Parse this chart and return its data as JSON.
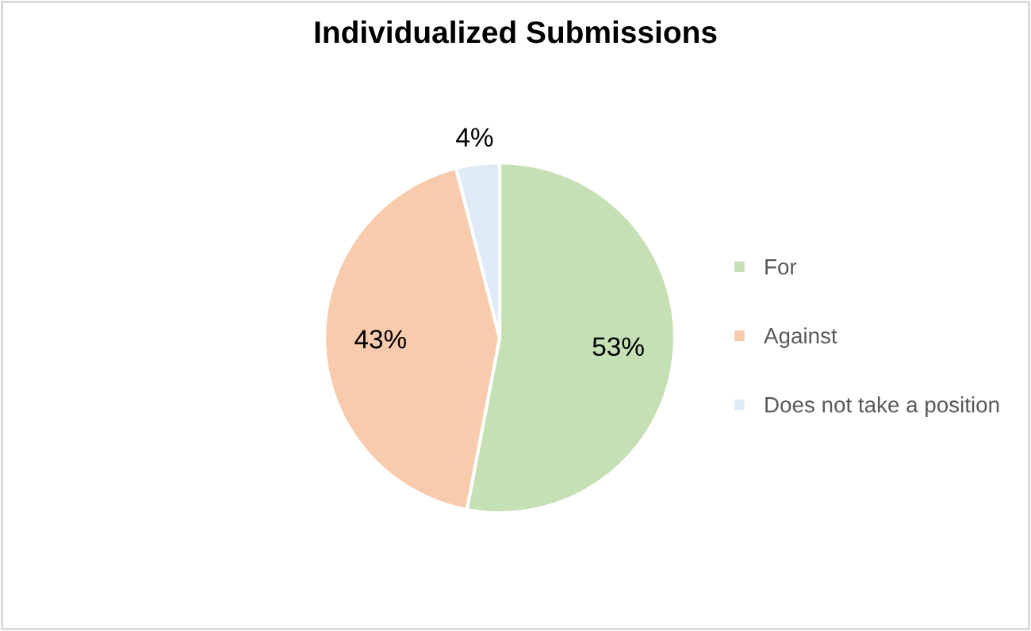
{
  "chart_data": {
    "type": "pie",
    "title": "Individualized Submissions",
    "categories": [
      "For",
      "Against",
      "Does not take a position"
    ],
    "values": [
      53,
      43,
      4
    ],
    "colors": [
      "#c5e0b4",
      "#f8cbad",
      "#deebf7"
    ],
    "value_labels": [
      "53%",
      "43%",
      "4%"
    ],
    "legend": "right"
  }
}
